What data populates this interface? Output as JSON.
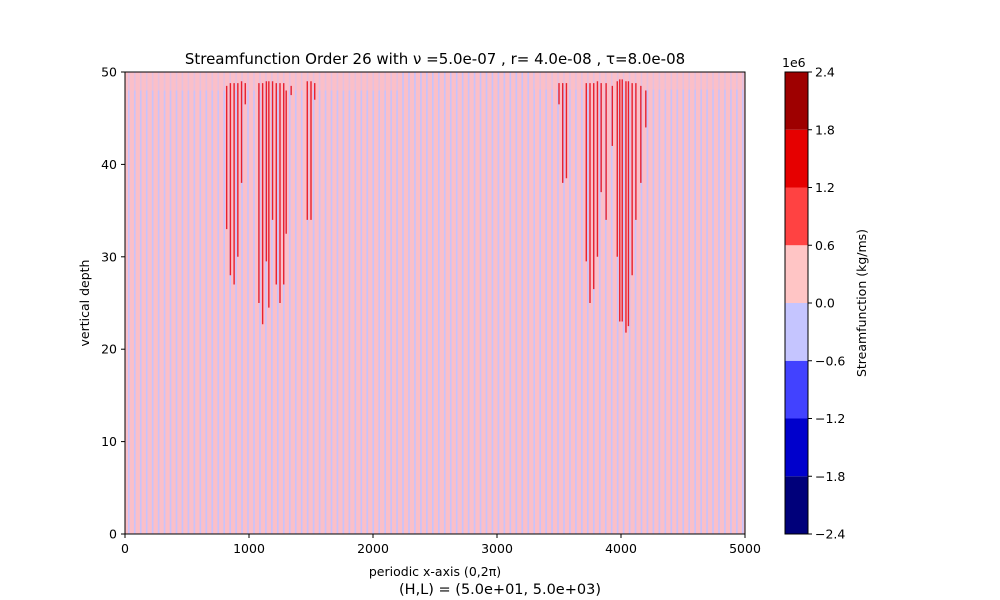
{
  "chart_data": {
    "type": "heatmap",
    "title": "Streamfunction Order 26 with ν =5.0e-07 , r= 4.0e-08 , τ=8.0e-08",
    "xlabel": "periodic x-axis (0,2π)",
    "ylabel": "vertical depth",
    "footer": "(H,L) = (5.0e+01, 5.0e+03)",
    "xlim": [
      0,
      5000
    ],
    "ylim": [
      0,
      50
    ],
    "x_ticks": [
      "0",
      "1000",
      "2000",
      "3000",
      "4000",
      "5000"
    ],
    "y_ticks": [
      "0",
      "10",
      "20",
      "30",
      "40",
      "50"
    ],
    "grid": false,
    "background_pattern": {
      "description": "alternating thin vertical stripes over the whole domain",
      "colors": [
        "#fbbfc8",
        "#c8c3fb"
      ],
      "stripe_count": 208
    },
    "top_bumps": [
      {
        "x0": 0,
        "x1": 2200,
        "y_bottom": 48.0
      },
      {
        "x0": 3300,
        "x1": 5000,
        "y_bottom": 48.1
      }
    ],
    "red_streaks": [
      {
        "x": 820,
        "y0": 33,
        "y1": 48.5
      },
      {
        "x": 850,
        "y0": 28,
        "y1": 48.8
      },
      {
        "x": 880,
        "y0": 27,
        "y1": 48.8
      },
      {
        "x": 910,
        "y0": 30,
        "y1": 48.8
      },
      {
        "x": 940,
        "y0": 38,
        "y1": 49.0
      },
      {
        "x": 970,
        "y0": 46.5,
        "y1": 48.8
      },
      {
        "x": 1080,
        "y0": 25,
        "y1": 48.8
      },
      {
        "x": 1110,
        "y0": 22.7,
        "y1": 48.8
      },
      {
        "x": 1140,
        "y0": 29.5,
        "y1": 49.0
      },
      {
        "x": 1160,
        "y0": 24.5,
        "y1": 49.0
      },
      {
        "x": 1190,
        "y0": 34,
        "y1": 49.0
      },
      {
        "x": 1220,
        "y0": 27,
        "y1": 48.8
      },
      {
        "x": 1250,
        "y0": 25,
        "y1": 48.8
      },
      {
        "x": 1280,
        "y0": 27,
        "y1": 48.8
      },
      {
        "x": 1300,
        "y0": 32.5,
        "y1": 48.0
      },
      {
        "x": 1340,
        "y0": 47.5,
        "y1": 48.5
      },
      {
        "x": 1470,
        "y0": 34,
        "y1": 49.0
      },
      {
        "x": 1500,
        "y0": 34,
        "y1": 49.0
      },
      {
        "x": 1530,
        "y0": 47.0,
        "y1": 48.8
      },
      {
        "x": 3500,
        "y0": 46.5,
        "y1": 48.8
      },
      {
        "x": 3530,
        "y0": 38,
        "y1": 48.8
      },
      {
        "x": 3560,
        "y0": 38.5,
        "y1": 48.8
      },
      {
        "x": 3720,
        "y0": 29.5,
        "y1": 48.8
      },
      {
        "x": 3750,
        "y0": 25,
        "y1": 48.8
      },
      {
        "x": 3780,
        "y0": 26.5,
        "y1": 48.8
      },
      {
        "x": 3810,
        "y0": 30,
        "y1": 49.0
      },
      {
        "x": 3840,
        "y0": 37,
        "y1": 48.8
      },
      {
        "x": 3880,
        "y0": 34,
        "y1": 48.8
      },
      {
        "x": 3930,
        "y0": 42,
        "y1": 48.5
      },
      {
        "x": 3970,
        "y0": 30,
        "y1": 49.0
      },
      {
        "x": 3990,
        "y0": 23,
        "y1": 49.2
      },
      {
        "x": 4010,
        "y0": 23,
        "y1": 49.2
      },
      {
        "x": 4040,
        "y0": 21.8,
        "y1": 49.0
      },
      {
        "x": 4060,
        "y0": 22.5,
        "y1": 49.0
      },
      {
        "x": 4090,
        "y0": 28,
        "y1": 48.8
      },
      {
        "x": 4120,
        "y0": 34,
        "y1": 48.8
      },
      {
        "x": 4160,
        "y0": 38,
        "y1": 48.5
      },
      {
        "x": 4200,
        "y0": 44,
        "y1": 48.0
      }
    ],
    "colorbar": {
      "label": "Streamfunction (kg/ms)",
      "scale_label": "1e6",
      "levels": [
        -2.4,
        -1.8,
        -1.2,
        -0.6,
        0.0,
        0.6,
        1.2,
        1.8,
        2.4
      ],
      "tick_labels": [
        "−2.4",
        "−1.8",
        "−1.2",
        "−0.6",
        "0.0",
        "0.6",
        "1.2",
        "1.8",
        "2.4"
      ],
      "colors": [
        "#00007a",
        "#0000cc",
        "#4242ff",
        "#c5c5ff",
        "#ffc5c5",
        "#ff4242",
        "#e60000",
        "#9e0000"
      ]
    },
    "streak_color": "#e8202e"
  }
}
